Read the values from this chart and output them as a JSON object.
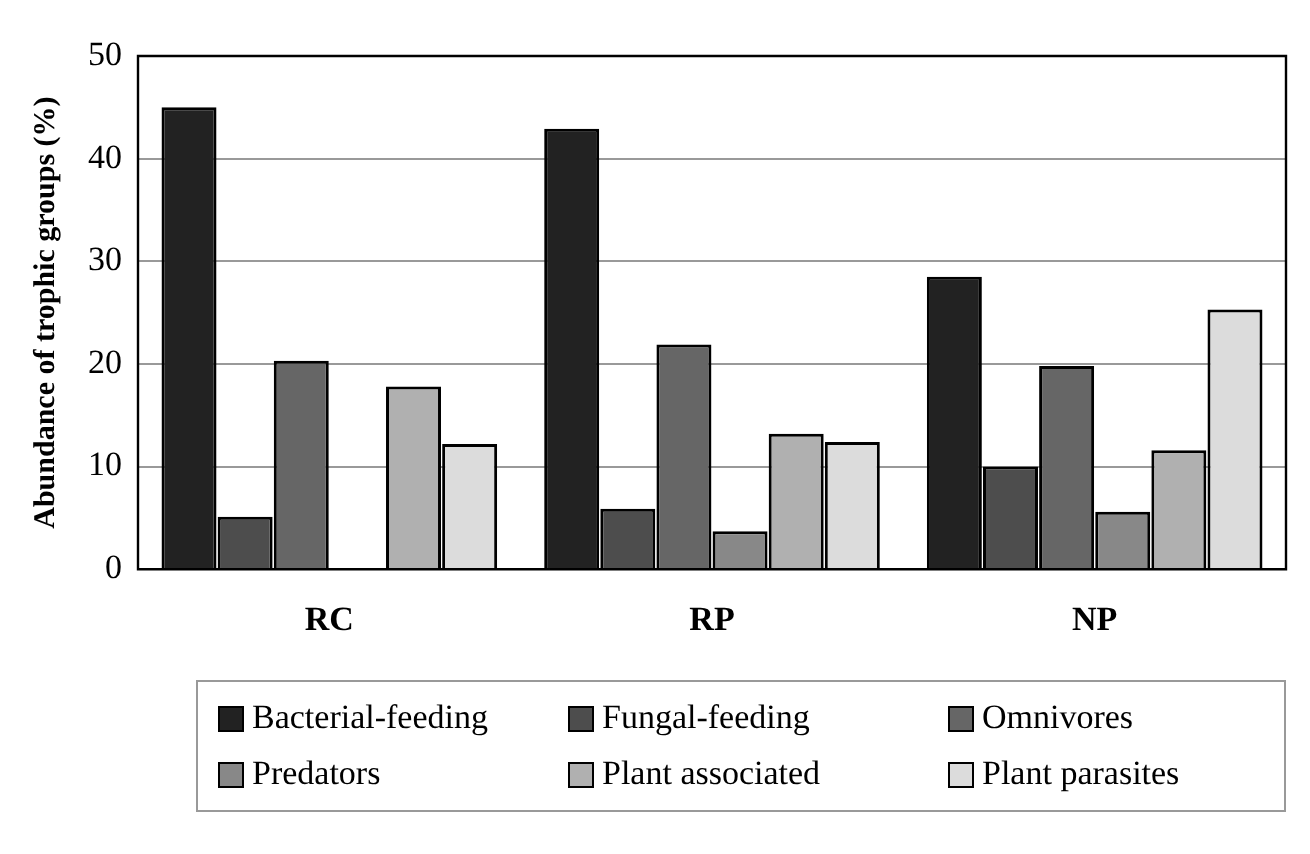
{
  "chart_data": {
    "type": "bar",
    "ylabel": "Abundance of trophic groups (%)",
    "categories": [
      "RC",
      "RP",
      "NP"
    ],
    "series": [
      {
        "name": "Bacterial-feeding",
        "color": "#222222",
        "values": [
          45.0,
          42.9,
          28.5
        ]
      },
      {
        "name": "Fungal-feeding",
        "color": "#4d4d4d",
        "values": [
          5.1,
          5.9,
          10.0
        ]
      },
      {
        "name": "Omnivores",
        "color": "#666666",
        "values": [
          20.3,
          21.9,
          19.8
        ]
      },
      {
        "name": "Predators",
        "color": "#888888",
        "values": [
          0,
          3.7,
          5.6
        ]
      },
      {
        "name": "Plant associated",
        "color": "#b0b0b0",
        "values": [
          17.8,
          13.2,
          11.6
        ]
      },
      {
        "name": "Plant parasites",
        "color": "#dcdcdc",
        "values": [
          12.2,
          12.4,
          25.3
        ]
      }
    ],
    "ylim": [
      0,
      50
    ],
    "yticks": [
      0,
      10,
      20,
      30,
      40,
      50
    ],
    "grid": "y",
    "legend": "bottom"
  }
}
